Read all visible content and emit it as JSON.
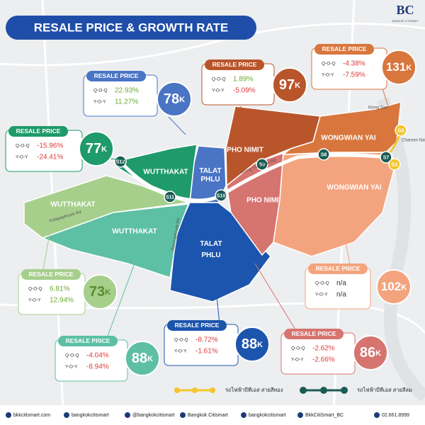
{
  "header": {
    "title": "RESALE PRICE & GROWTH RATE",
    "logo": "BC",
    "logo_sub": "BANGKOK CITISMART"
  },
  "zones": [
    "TALAT PHLU",
    "TALAT PHLU",
    "WUTTHAKAT",
    "WUTTHAKAT",
    "WUTTHAKAT",
    "PHO NIMIT",
    "PHO NIMIT",
    "WONGWIAN YAI",
    "WONGWIAN YAI"
  ],
  "stations": [
    "S7",
    "S8",
    "S9",
    "S10",
    "S11",
    "S12",
    "G1",
    "G2"
  ],
  "roads": [
    "Klong San",
    "Charoen Nakorn",
    "Krung Thon Buri Rd",
    "Kalapaphruek Rd",
    "Ratchaphruek Rd"
  ],
  "callouts": [
    {
      "label": "RESALE PRICE",
      "qoq_label": "Q-O-Q",
      "qoq": "22.93%",
      "yoy_label": "Y-O-Y",
      "yoy": "11.27%",
      "price": "78",
      "unit": "K"
    },
    {
      "label": "RESALE PRICE",
      "qoq_label": "Q-O-Q",
      "qoq": "1.89%",
      "yoy_label": "Y-O-Y",
      "yoy": "-5.09%",
      "price": "97",
      "unit": "K"
    },
    {
      "label": "RESALE PRICE",
      "qoq_label": "Q-O-Q",
      "qoq": "-4.38%",
      "yoy_label": "Y-O-Y",
      "yoy": "-7.59%",
      "price": "131",
      "unit": "K"
    },
    {
      "label": "RESALE PRICE",
      "qoq_label": "Q-O-Q",
      "qoq": "-15.96%",
      "yoy_label": "Y-O-Y",
      "yoy": "-24.41%",
      "price": "77",
      "unit": "K"
    },
    {
      "label": "RESALE PRICE",
      "qoq_label": "Q-O-Q",
      "qoq": "6.81%",
      "yoy_label": "Y-O-Y",
      "yoy": "12.94%",
      "price": "73",
      "unit": "K"
    },
    {
      "label": "RESALE PRICE",
      "qoq_label": "Q-O-Q",
      "qoq": "-4.04%",
      "yoy_label": "Y-O-Y",
      "yoy": "-8.94%",
      "price": "88",
      "unit": "K"
    },
    {
      "label": "RESALE PRICE",
      "qoq_label": "Q-O-Q",
      "qoq": "-8.72%",
      "yoy_label": "Y-O-Y",
      "yoy": "-1.61%",
      "price": "88",
      "unit": "K"
    },
    {
      "label": "RESALE PRICE",
      "qoq_label": "Q-O-Q",
      "qoq": "n/a",
      "yoy_label": "Y-O-Y",
      "yoy": "n/a",
      "price": "102",
      "unit": "K"
    },
    {
      "label": "RESALE PRICE",
      "qoq_label": "Q-O-Q",
      "qoq": "-2.62%",
      "yoy_label": "Y-O-Y",
      "yoy": "-2.66%",
      "price": "86",
      "unit": "K"
    }
  ],
  "legend": [
    "รถไฟฟ้าบีทีเอส สายสีทอง",
    "รถไฟฟ้าบีทีเอส สายสีลม"
  ],
  "footer": [
    "bkkcitismart.com",
    "bangkokcitismart",
    "@bangkokcitismart",
    "Bangkok Citismart",
    "bangkokcitismart",
    "BkkCitiSmart_BC",
    "02.661.8999"
  ]
}
